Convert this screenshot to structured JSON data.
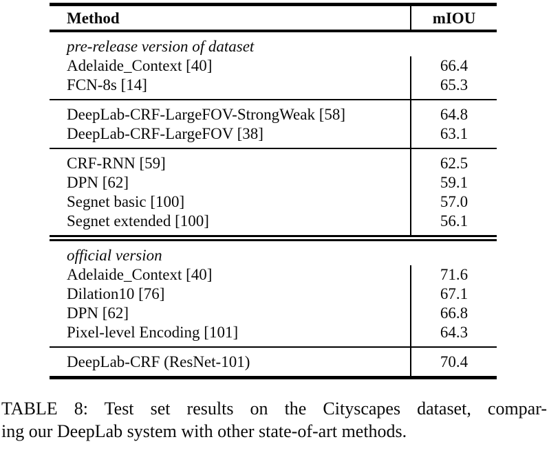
{
  "table": {
    "header": {
      "method": "Method",
      "metric": "mIOU"
    },
    "sections": [
      {
        "label": "pre-release version of dataset",
        "rows": [
          {
            "method": "Adelaide_Context [40]",
            "miou": "66.4"
          },
          {
            "method": "FCN-8s [14]",
            "miou": "65.3"
          }
        ]
      },
      {
        "rows": [
          {
            "method": "DeepLab-CRF-LargeFOV-StrongWeak [58]",
            "miou": "64.8"
          },
          {
            "method": "DeepLab-CRF-LargeFOV [38]",
            "miou": "63.1"
          }
        ]
      },
      {
        "rows": [
          {
            "method": "CRF-RNN [59]",
            "miou": "62.5"
          },
          {
            "method": "DPN [62]",
            "miou": "59.1"
          },
          {
            "method": "Segnet basic [100]",
            "miou": "57.0"
          },
          {
            "method": "Segnet extended [100]",
            "miou": "56.1"
          }
        ]
      },
      {
        "label": "official version",
        "rows": [
          {
            "method": "Adelaide_Context [40]",
            "miou": "71.6"
          },
          {
            "method": "Dilation10 [76]",
            "miou": "67.1"
          },
          {
            "method": "DPN [62]",
            "miou": "66.8"
          },
          {
            "method": "Pixel-level Encoding [101]",
            "miou": "64.3"
          }
        ]
      },
      {
        "rows": [
          {
            "method": "DeepLab-CRF (ResNet-101)",
            "miou": "70.4"
          }
        ]
      }
    ]
  },
  "caption": {
    "line1": "TABLE 8: Test set results on the Cityscapes dataset, compar-",
    "line2": "ing our DeepLab system with other state-of-art methods."
  },
  "colors": {
    "text": "#0a0a0a",
    "background": "#ffffff",
    "rule": "#000000"
  }
}
